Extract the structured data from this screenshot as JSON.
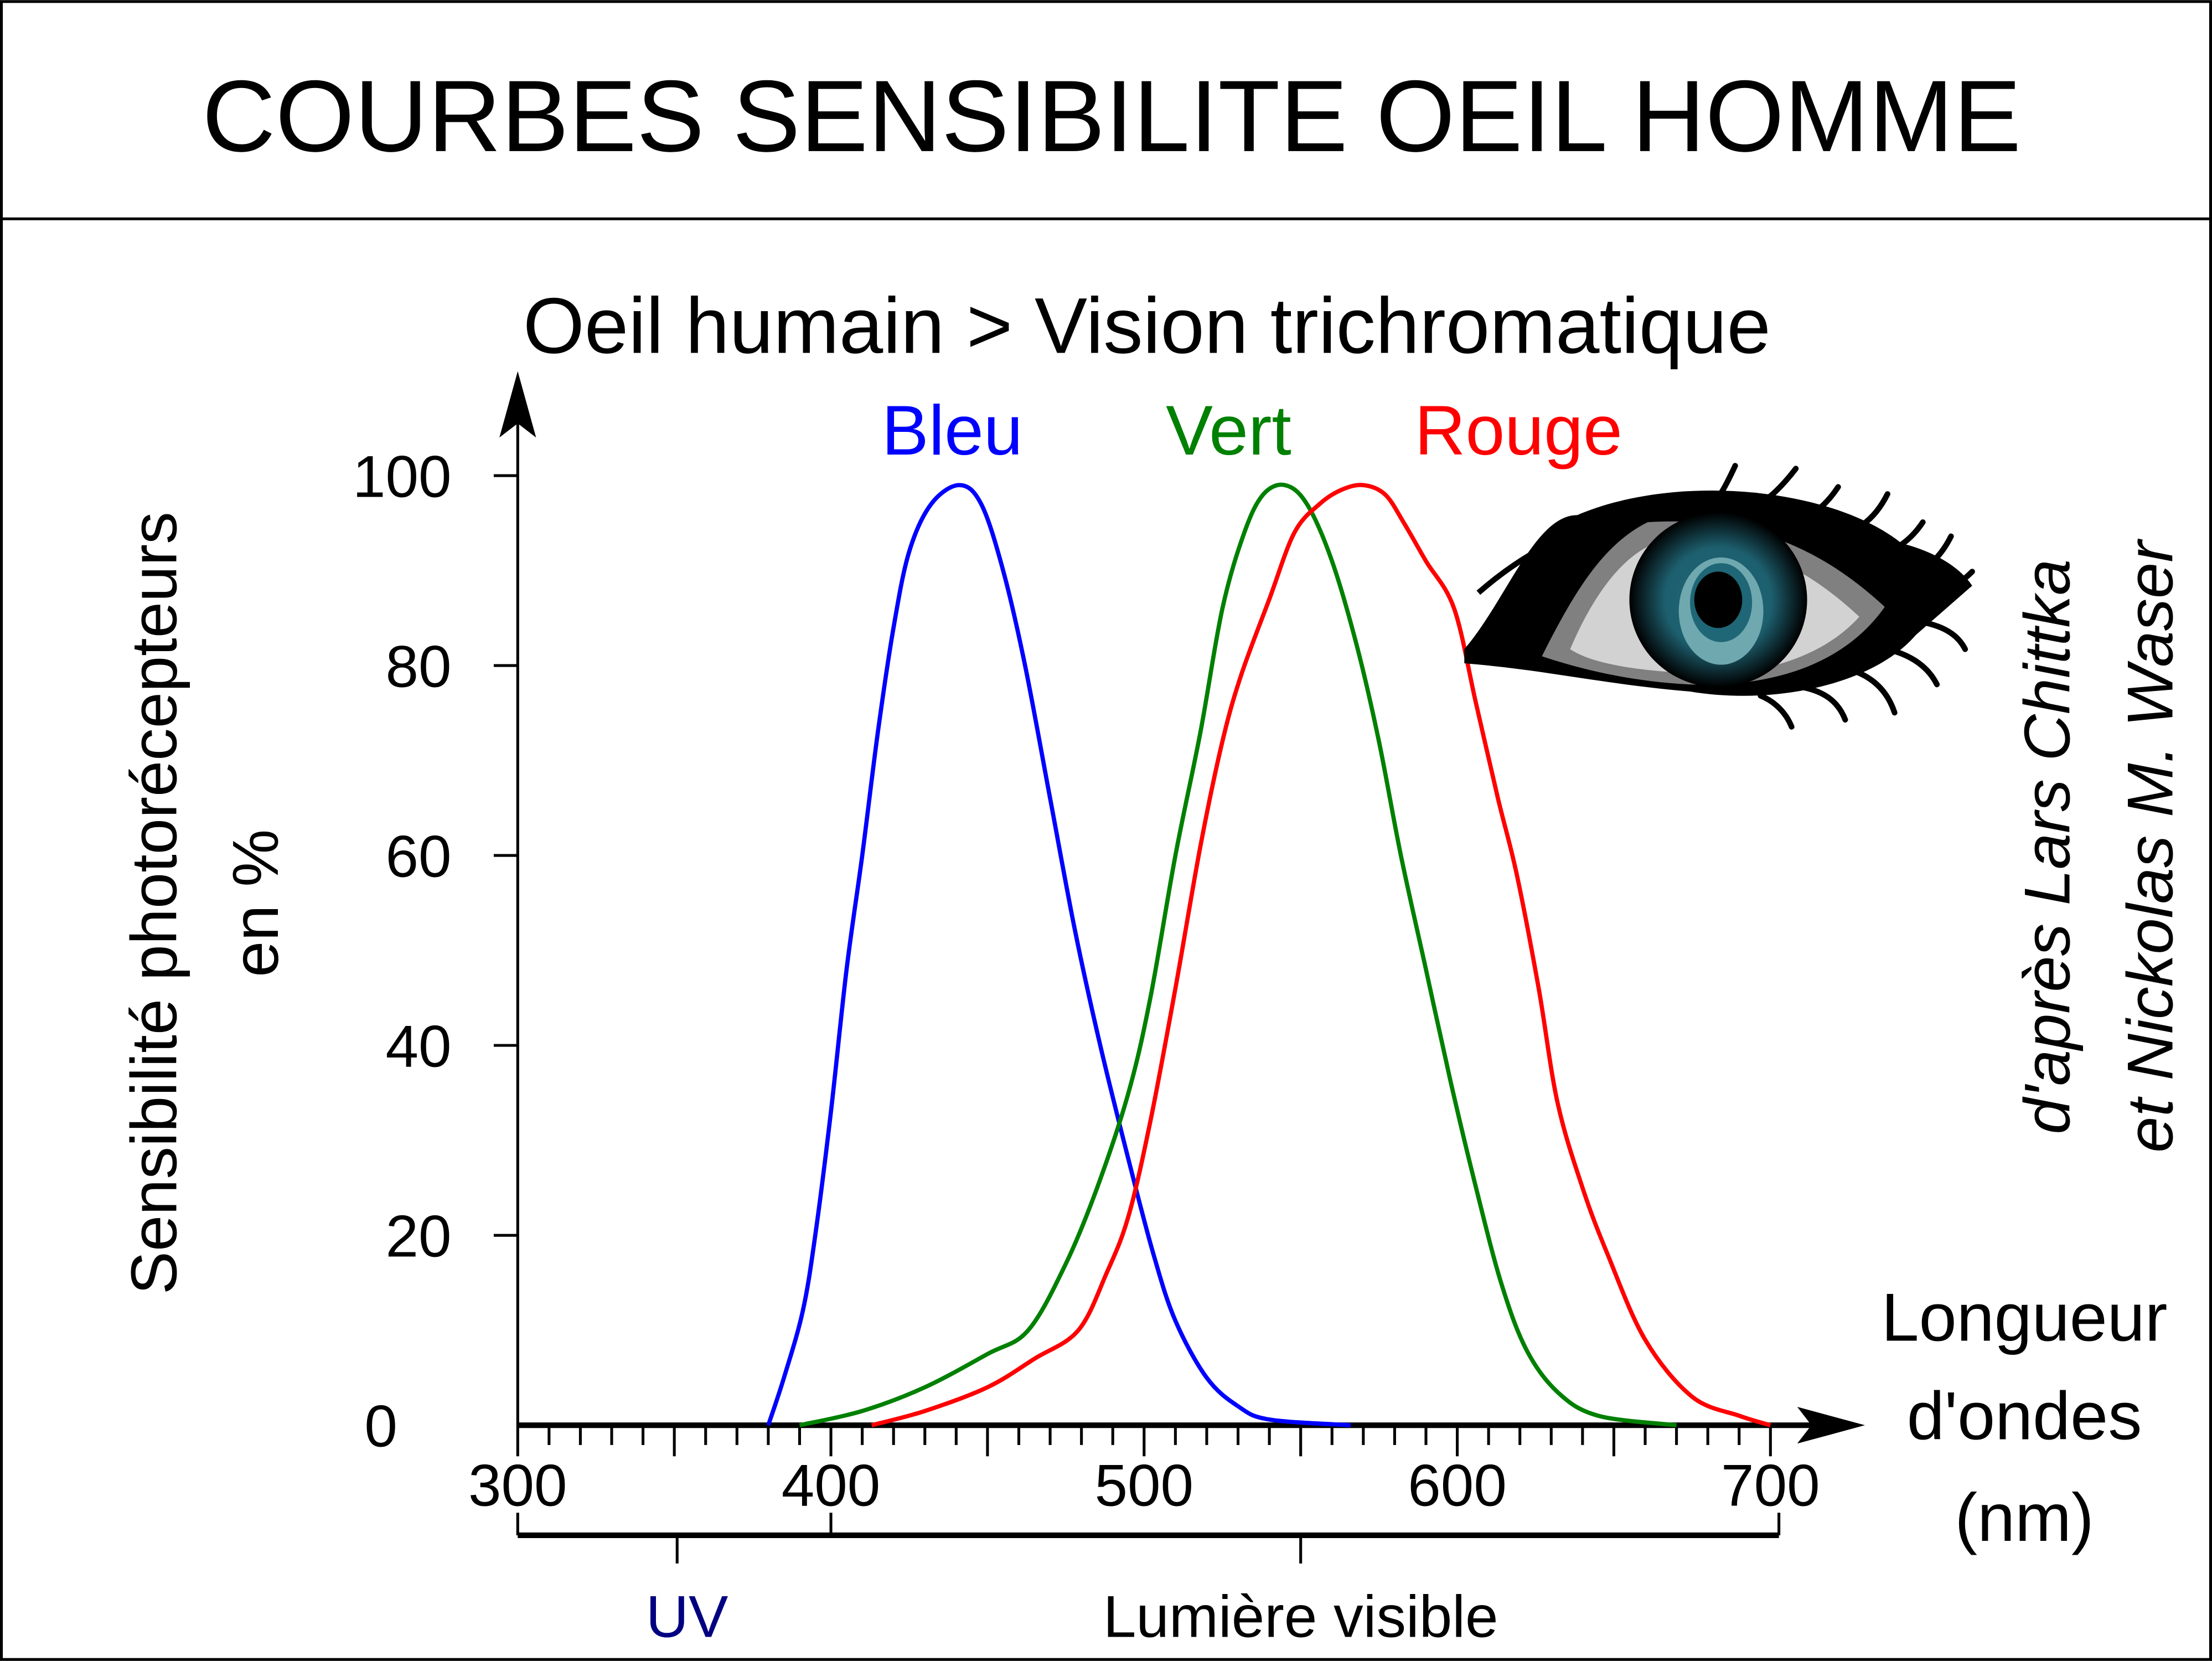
{
  "header": {
    "title": "COURBES SENSIBILITE OEIL HOMME"
  },
  "credits": {
    "line1": "d'après Lars Chittka",
    "line2": "et Nickolas M. Waser"
  },
  "bands": {
    "uv": "UV",
    "visible": "Lumière visible",
    "uv_color": "#000080"
  },
  "chart_data": {
    "type": "line",
    "title": "Oeil humain > Vision trichromatique",
    "ylabel_line1": "Sensibilité photorécepteurs",
    "ylabel_line2": "en %",
    "xlabel_lines": [
      "Longueur",
      "d'ondes",
      "(nm)"
    ],
    "xlim": [
      300,
      700
    ],
    "ylim": [
      0,
      100
    ],
    "xticks": [
      "300",
      "400",
      "500",
      "600",
      "700"
    ],
    "yticks": [
      "0",
      "20",
      "40",
      "60",
      "80",
      "100"
    ],
    "grid": false,
    "series": [
      {
        "name": "Bleu",
        "color": "#0000ff",
        "points": [
          [
            380,
            0
          ],
          [
            385,
            5
          ],
          [
            391,
            12
          ],
          [
            395,
            20
          ],
          [
            400,
            33
          ],
          [
            405,
            48
          ],
          [
            410,
            60
          ],
          [
            415,
            73
          ],
          [
            420,
            84
          ],
          [
            425,
            92
          ],
          [
            432,
            97
          ],
          [
            441,
            99
          ],
          [
            448,
            97
          ],
          [
            455,
            90
          ],
          [
            462,
            80
          ],
          [
            470,
            66
          ],
          [
            478,
            52
          ],
          [
            486,
            40
          ],
          [
            495,
            28
          ],
          [
            503,
            18
          ],
          [
            510,
            11
          ],
          [
            520,
            5
          ],
          [
            530,
            2
          ],
          [
            540,
            0.6
          ],
          [
            566,
            0
          ]
        ]
      },
      {
        "name": "Vert",
        "color": "#008000",
        "points": [
          [
            390,
            0
          ],
          [
            410,
            1.5
          ],
          [
            430,
            4
          ],
          [
            450,
            7.5
          ],
          [
            463,
            10
          ],
          [
            475,
            17
          ],
          [
            485,
            25
          ],
          [
            495,
            35
          ],
          [
            502,
            45
          ],
          [
            510,
            60
          ],
          [
            518,
            73
          ],
          [
            525,
            86
          ],
          [
            532,
            94
          ],
          [
            538,
            98
          ],
          [
            545,
            99
          ],
          [
            552,
            97
          ],
          [
            560,
            91
          ],
          [
            568,
            82
          ],
          [
            575,
            72
          ],
          [
            582,
            60
          ],
          [
            590,
            48
          ],
          [
            598,
            36
          ],
          [
            606,
            25
          ],
          [
            614,
            15
          ],
          [
            622,
            8
          ],
          [
            632,
            3.5
          ],
          [
            645,
            1
          ],
          [
            670,
            0
          ]
        ]
      },
      {
        "name": "Rouge",
        "color": "#ff0000",
        "points": [
          [
            413,
            0
          ],
          [
            430,
            1.5
          ],
          [
            450,
            4
          ],
          [
            465,
            7
          ],
          [
            479,
            10
          ],
          [
            488,
            16
          ],
          [
            495,
            22
          ],
          [
            502,
            32
          ],
          [
            510,
            46
          ],
          [
            518,
            61
          ],
          [
            525,
            72
          ],
          [
            531,
            79
          ],
          [
            540,
            87
          ],
          [
            548,
            94
          ],
          [
            556,
            97
          ],
          [
            563,
            98.5
          ],
          [
            570,
            99
          ],
          [
            577,
            98
          ],
          [
            583,
            95
          ],
          [
            590,
            91
          ],
          [
            599,
            86
          ],
          [
            606,
            76
          ],
          [
            613,
            66
          ],
          [
            619,
            58
          ],
          [
            626,
            46
          ],
          [
            632,
            34
          ],
          [
            640,
            25
          ],
          [
            648,
            18
          ],
          [
            660,
            9
          ],
          [
            675,
            3
          ],
          [
            690,
            1
          ],
          [
            700,
            0
          ]
        ]
      }
    ]
  }
}
